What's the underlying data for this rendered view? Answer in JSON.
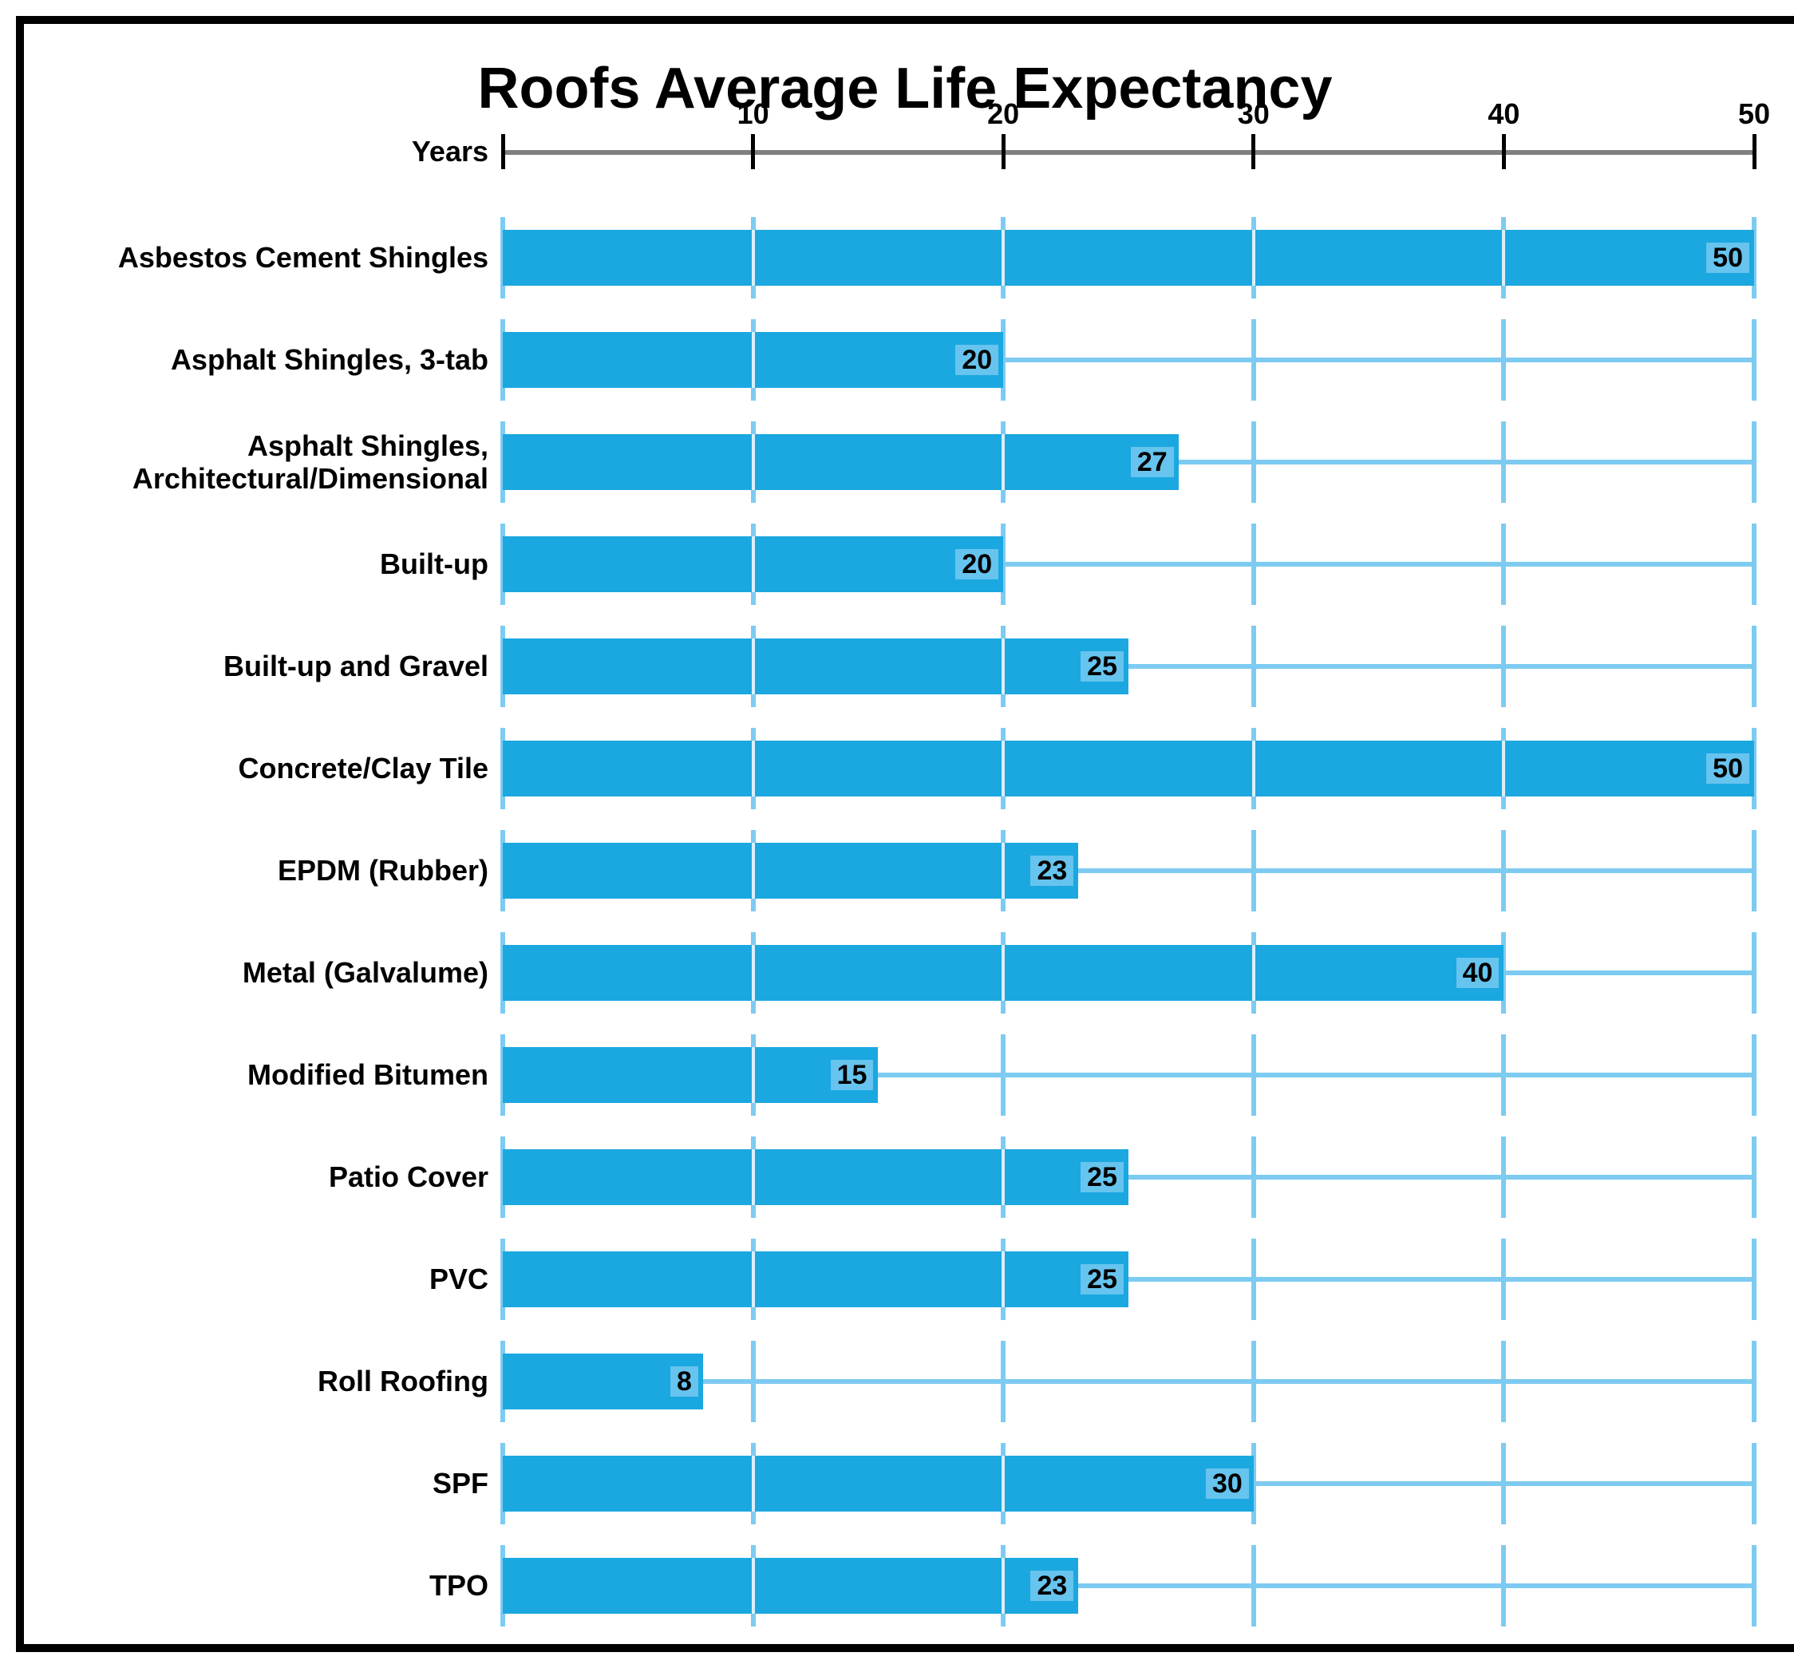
{
  "chart": {
    "title": "Roofs Average Life Expectancy",
    "axis_label": "Years",
    "type": "bar-horizontal",
    "x_max": 50,
    "ticks": [
      0,
      10,
      20,
      30,
      40,
      50
    ],
    "tick_labels": [
      "",
      "10",
      "20",
      "30",
      "40",
      "50"
    ],
    "bar_color": "#1ba7e0",
    "value_bg": "#66c4ee",
    "guide_color": "#7ecbf2",
    "bar_sep_color": "#dbeffa",
    "axis_line_color": "#808080",
    "text_color": "#000000",
    "title_fontsize": 72,
    "label_fontsize": 36,
    "value_fontsize": 34,
    "rows": [
      {
        "label": "Asbestos Cement Shingles",
        "value": 50
      },
      {
        "label": "Asphalt Shingles, 3-tab",
        "value": 20
      },
      {
        "label": "Asphalt Shingles,\nArchitectural/Dimensional",
        "value": 27
      },
      {
        "label": "Built-up",
        "value": 20
      },
      {
        "label": "Built-up and Gravel",
        "value": 25
      },
      {
        "label": "Concrete/Clay Tile",
        "value": 50
      },
      {
        "label": "EPDM (Rubber)",
        "value": 23
      },
      {
        "label": "Metal (Galvalume)",
        "value": 40
      },
      {
        "label": "Modified Bitumen",
        "value": 15
      },
      {
        "label": "Patio Cover",
        "value": 25
      },
      {
        "label": "PVC",
        "value": 25
      },
      {
        "label": "Roll Roofing",
        "value": 8
      },
      {
        "label": "SPF",
        "value": 30
      },
      {
        "label": "TPO",
        "value": 23
      }
    ]
  }
}
